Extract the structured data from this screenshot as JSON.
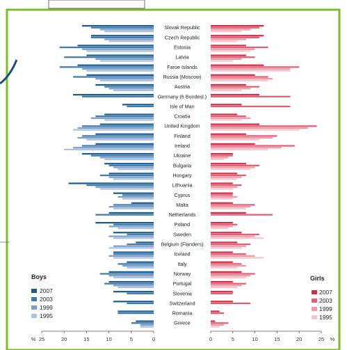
{
  "chart_data": {
    "type": "bar",
    "layout": "back-to-back horizontal bars",
    "unit_symbol": "%",
    "xlim": [
      0,
      25
    ],
    "x_ticks": [
      "25",
      "20",
      "15",
      "10",
      "5",
      "0"
    ],
    "x_ticks_right": [
      "0",
      "5",
      "10",
      "15",
      "20",
      "25"
    ],
    "categories": [
      "Slovak Republic",
      "Czech Republic",
      "Estonia",
      "Latvia",
      "Faroe Islands",
      "Russia (Moscow)",
      "Austria",
      "Germany (6 Bundesl.)",
      "Isle of Man",
      "Croatia",
      "United Kingdom",
      "Finland",
      "Ireland",
      "Ukraine",
      "Bulgaria",
      "Hungary",
      "Lithuania",
      "Cyprus",
      "Malta",
      "Netherlands",
      "Poland",
      "Sweden",
      "Belgium (Flanders)",
      "Iceland",
      "Italy",
      "Norway",
      "Portugal",
      "Slovenia",
      "Switzerland",
      "Romania",
      "Greece"
    ],
    "years": [
      "2007",
      "2003",
      "1999",
      "1995"
    ],
    "boys": {
      "title": "Boys",
      "colors": [
        "#1b5c8c",
        "#3f7ab0",
        "#7b9ec6",
        "#a9c0de"
      ],
      "series": [
        {
          "name": "2007",
          "values": [
            16,
            14,
            17,
            15,
            17,
            15,
            13,
            18,
            7,
            11,
            12,
            13,
            13,
            16,
            11,
            10,
            19,
            9,
            5,
            10,
            13,
            9,
            4,
            9,
            6,
            10,
            10,
            9,
            9,
            8,
            4
          ]
        },
        {
          "name": "2003",
          "values": [
            14,
            14,
            21,
            20,
            21,
            18,
            11,
            16,
            6,
            13,
            16,
            16,
            16,
            14,
            10,
            12,
            15,
            7,
            9,
            13,
            9,
            6,
            6,
            9,
            8,
            12,
            11,
            6,
            6,
            8,
            5
          ]
        },
        {
          "name": "1999",
          "values": [
            12,
            11,
            16,
            13,
            16,
            13,
            10,
            0,
            0,
            14,
            17,
            17,
            18,
            12,
            9,
            10,
            13,
            8,
            10,
            0,
            10,
            10,
            9,
            10,
            7,
            10,
            9,
            0,
            0,
            0,
            3
          ]
        },
        {
          "name": "1995",
          "values": [
            11,
            10,
            15,
            12,
            15,
            12,
            9,
            0,
            0,
            11,
            18,
            15,
            20,
            11,
            8,
            9,
            12,
            7,
            9,
            0,
            8,
            9,
            10,
            9,
            6,
            9,
            8,
            0,
            0,
            0,
            3
          ]
        }
      ]
    },
    "girls": {
      "title": "Girls",
      "colors": [
        "#d52a4a",
        "#e25e73",
        "#ee9aa6",
        "#f7c6cd"
      ],
      "series": [
        {
          "name": "2007",
          "values": [
            12,
            12,
            8,
            8,
            12,
            10,
            8,
            11,
            7,
            6,
            11,
            8,
            10,
            5,
            8,
            6,
            5,
            5,
            5,
            8,
            5,
            7,
            6,
            5,
            5,
            7,
            5,
            5,
            5,
            2,
            1
          ]
        },
        {
          "name": "2003",
          "values": [
            11,
            11,
            13,
            10,
            20,
            13,
            11,
            18,
            18,
            8,
            24,
            15,
            19,
            5,
            11,
            8,
            7,
            5,
            10,
            14,
            6,
            11,
            9,
            8,
            7,
            10,
            8,
            5,
            9,
            3,
            4
          ]
        },
        {
          "name": "1999",
          "values": [
            9,
            8,
            10,
            7,
            18,
            14,
            9,
            0,
            0,
            9,
            22,
            14,
            16,
            4,
            10,
            7,
            6,
            6,
            9,
            0,
            5,
            10,
            8,
            10,
            8,
            9,
            7,
            0,
            0,
            0,
            3
          ]
        },
        {
          "name": "1995",
          "values": [
            7,
            6,
            9,
            5,
            18,
            13,
            7,
            0,
            0,
            7,
            20,
            11,
            13,
            3,
            9,
            6,
            5,
            5,
            8,
            0,
            4,
            12,
            7,
            12,
            6,
            8,
            6,
            0,
            0,
            0,
            2
          ]
        }
      ]
    }
  }
}
